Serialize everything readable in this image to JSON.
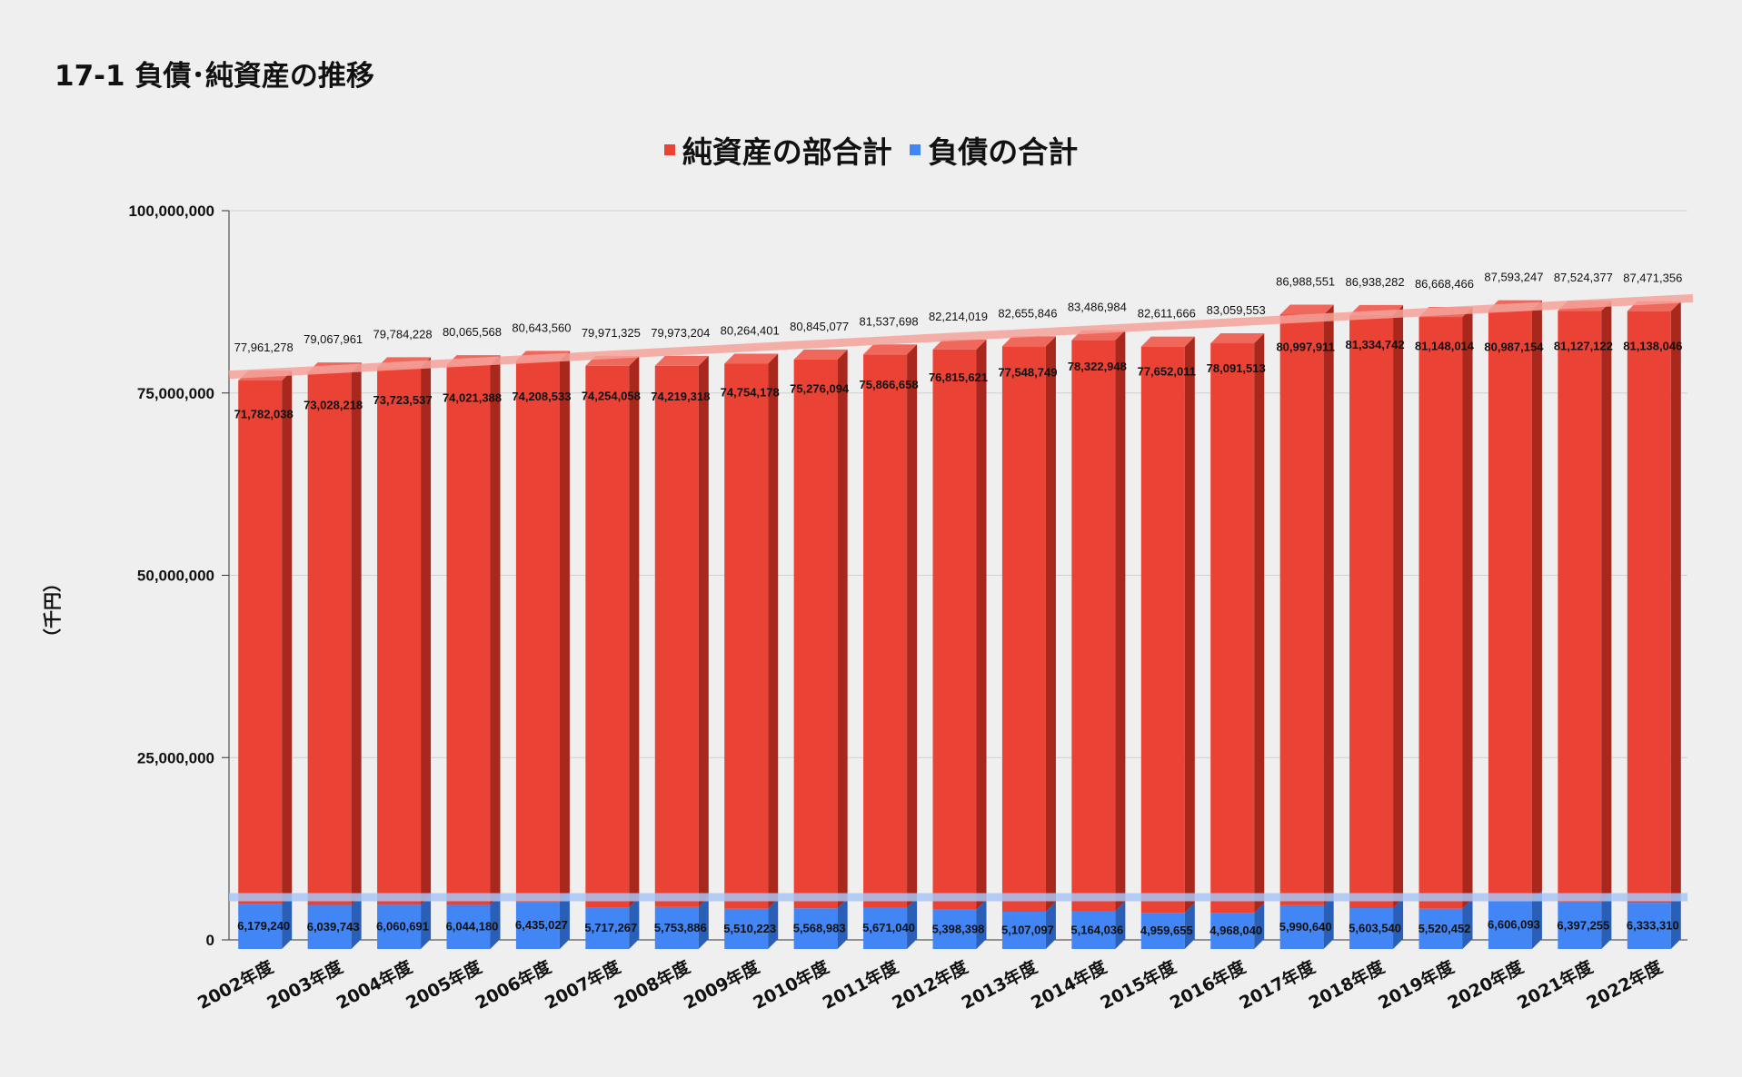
{
  "title": "17-1 負債･純資産の推移",
  "ylabel": "（千円）",
  "colors": {
    "net_assets": "#ea4335",
    "net_assets_side": "#a8281d",
    "net_assets_top": "#f0685c",
    "liabilities": "#4285f4",
    "liabilities_side": "#2a5fb8",
    "trend_net_assets": "#f4a29b",
    "trend_liabilities": "#a9c4f5",
    "grid": "#d0d0d0",
    "background": "#efefef"
  },
  "chart_data": {
    "type": "bar",
    "stacked": true,
    "title": "",
    "xlabel": "",
    "ylabel": "（千円）",
    "ylim": [
      0,
      100000000
    ],
    "yticks": [
      0,
      25000000,
      50000000,
      75000000,
      100000000
    ],
    "ytick_labels": [
      "0",
      "25,000,000",
      "50,000,000",
      "75,000,000",
      "100,000,000"
    ],
    "grid": true,
    "legend_position": "top",
    "categories": [
      "2002年度",
      "2003年度",
      "2004年度",
      "2005年度",
      "2006年度",
      "2007年度",
      "2008年度",
      "2009年度",
      "2010年度",
      "2011年度",
      "2012年度",
      "2013年度",
      "2014年度",
      "2015年度",
      "2016年度",
      "2017年度",
      "2018年度",
      "2019年度",
      "2020年度",
      "2021年度",
      "2022年度"
    ],
    "series": [
      {
        "name": "純資産の部合計",
        "values": [
          71782038,
          73028218,
          73723537,
          74021388,
          74208533,
          74254058,
          74219318,
          74754178,
          75276094,
          75866658,
          76815621,
          77548749,
          78322948,
          77652011,
          78091513,
          80997911,
          81334742,
          81148014,
          80987154,
          81127122,
          81138046
        ],
        "labels": [
          "71,782,038",
          "73,028,218",
          "73,723,537",
          "74,021,388",
          "74,208,533",
          "74,254,058",
          "74,219,318",
          "74,754,178",
          "75,276,094",
          "75,866,658",
          "76,815,621",
          "77,548,749",
          "78,322,948",
          "77,652,011",
          "78,091,513",
          "80,997,911",
          "81,334,742",
          "81,148,014",
          "80,987,154",
          "81,127,122",
          "81,138,046"
        ]
      },
      {
        "name": "負債の合計",
        "values": [
          6179240,
          6039743,
          6060691,
          6044180,
          6435027,
          5717267,
          5753886,
          5510223,
          5568983,
          5671040,
          5398398,
          5107097,
          5164036,
          4959655,
          4968040,
          5990640,
          5603540,
          5520452,
          6606093,
          6397255,
          6333310
        ],
        "labels": [
          "6,179,240",
          "6,039,743",
          "6,060,691",
          "6,044,180",
          "6,435,027",
          "5,717,267",
          "5,753,886",
          "5,510,223",
          "5,568,983",
          "5,671,040",
          "5,398,398",
          "5,107,097",
          "5,164,036",
          "4,959,655",
          "4,968,040",
          "5,990,640",
          "5,603,540",
          "5,520,452",
          "6,606,093",
          "6,397,255",
          "6,333,310"
        ]
      }
    ],
    "totals": [
      77961278,
      79067961,
      79784228,
      80065568,
      80643560,
      79971325,
      79973204,
      80264401,
      80845077,
      81537698,
      82214019,
      82655846,
      83486984,
      82611666,
      83059553,
      86988551,
      86938282,
      86668466,
      87593247,
      87524377,
      87471356
    ],
    "total_labels": [
      "77,961,278",
      "79,067,961",
      "79,784,228",
      "80,065,568",
      "80,643,560",
      "79,971,325",
      "79,973,204",
      "80,264,401",
      "80,845,077",
      "81,537,698",
      "82,214,019",
      "82,655,846",
      "83,486,984",
      "82,611,666",
      "83,059,553",
      "86,988,551",
      "86,938,282",
      "86,668,466",
      "87,593,247",
      "87,524,377",
      "87,471,356"
    ],
    "trendlines": [
      {
        "series": "純資産の部合計",
        "start": 77500000,
        "end": 88000000
      },
      {
        "series": "負債の合計",
        "start": 5850000,
        "end": 5850000
      }
    ]
  }
}
